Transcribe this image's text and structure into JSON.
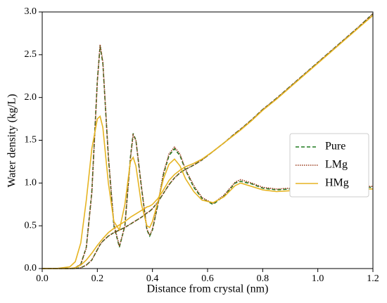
{
  "chart_data": {
    "type": "line",
    "xlabel": "Distance from crystal (nm)",
    "ylabel": "Water density (kg/L)",
    "x": [
      0,
      0.05,
      0.1,
      0.12,
      0.14,
      0.16,
      0.18,
      0.2,
      0.21,
      0.22,
      0.24,
      0.26,
      0.28,
      0.3,
      0.32,
      0.33,
      0.34,
      0.36,
      0.38,
      0.39,
      0.4,
      0.42,
      0.44,
      0.46,
      0.48,
      0.5,
      0.52,
      0.55,
      0.58,
      0.62,
      0.66,
      0.7,
      0.72,
      0.76,
      0.8,
      0.85,
      0.9,
      0.95,
      1.0,
      1.05,
      1.1,
      1.15,
      1.2
    ],
    "series": [
      {
        "name": "Pure",
        "color": "#1f7a1f",
        "dash": "5,3",
        "values": [
          0,
          0,
          0,
          0.01,
          0.05,
          0.25,
          0.9,
          2.2,
          2.6,
          2.4,
          1.3,
          0.5,
          0.25,
          0.5,
          1.3,
          1.58,
          1.5,
          0.95,
          0.45,
          0.38,
          0.45,
          0.75,
          1.1,
          1.32,
          1.4,
          1.32,
          1.15,
          0.95,
          0.82,
          0.75,
          0.85,
          1.0,
          1.02,
          0.99,
          0.94,
          0.92,
          0.93,
          0.94,
          0.95,
          0.95,
          0.95,
          0.95,
          0.95
        ],
        "cumulative": [
          0,
          0,
          0,
          0,
          0.01,
          0.04,
          0.1,
          0.22,
          0.28,
          0.32,
          0.38,
          0.42,
          0.45,
          0.48,
          0.52,
          0.54,
          0.56,
          0.6,
          0.65,
          0.67,
          0.7,
          0.78,
          0.88,
          0.98,
          1.06,
          1.12,
          1.16,
          1.21,
          1.27,
          1.37,
          1.47,
          1.58,
          1.63,
          1.74,
          1.86,
          1.99,
          2.13,
          2.27,
          2.41,
          2.55,
          2.69,
          2.83,
          2.98
        ]
      },
      {
        "name": "LMg",
        "color": "#9a3b1c",
        "dash": "1.5,1.5",
        "values": [
          0,
          0,
          0,
          0.01,
          0.05,
          0.24,
          0.88,
          2.18,
          2.62,
          2.42,
          1.32,
          0.52,
          0.26,
          0.5,
          1.28,
          1.56,
          1.5,
          0.96,
          0.46,
          0.39,
          0.46,
          0.76,
          1.12,
          1.34,
          1.42,
          1.34,
          1.16,
          0.97,
          0.83,
          0.76,
          0.86,
          1.01,
          1.04,
          1.0,
          0.95,
          0.93,
          0.94,
          0.95,
          0.96,
          0.96,
          0.96,
          0.96,
          0.96
        ],
        "cumulative": [
          0,
          0,
          0,
          0,
          0.01,
          0.04,
          0.1,
          0.22,
          0.28,
          0.32,
          0.38,
          0.42,
          0.45,
          0.48,
          0.52,
          0.54,
          0.56,
          0.6,
          0.65,
          0.67,
          0.7,
          0.78,
          0.88,
          0.98,
          1.06,
          1.12,
          1.16,
          1.21,
          1.27,
          1.37,
          1.47,
          1.58,
          1.63,
          1.74,
          1.86,
          1.99,
          2.13,
          2.27,
          2.41,
          2.55,
          2.69,
          2.83,
          2.98
        ]
      },
      {
        "name": "HMg",
        "color": "#e6b422",
        "dash": "",
        "values": [
          0,
          0,
          0.02,
          0.08,
          0.3,
          0.8,
          1.4,
          1.75,
          1.78,
          1.65,
          1.0,
          0.55,
          0.45,
          0.75,
          1.25,
          1.3,
          1.2,
          0.75,
          0.5,
          0.48,
          0.55,
          0.78,
          1.05,
          1.22,
          1.28,
          1.2,
          1.05,
          0.9,
          0.8,
          0.77,
          0.84,
          0.97,
          1.0,
          0.96,
          0.92,
          0.9,
          0.91,
          0.92,
          0.93,
          0.93,
          0.93,
          0.93,
          0.93
        ],
        "cumulative": [
          0,
          0,
          0,
          0.01,
          0.04,
          0.1,
          0.18,
          0.27,
          0.31,
          0.35,
          0.42,
          0.47,
          0.51,
          0.55,
          0.6,
          0.62,
          0.64,
          0.68,
          0.72,
          0.73,
          0.75,
          0.82,
          0.92,
          1.03,
          1.1,
          1.15,
          1.19,
          1.23,
          1.28,
          1.37,
          1.47,
          1.57,
          1.62,
          1.73,
          1.85,
          1.98,
          2.12,
          2.26,
          2.4,
          2.54,
          2.68,
          2.82,
          2.96
        ]
      }
    ],
    "xlim": [
      0,
      1.2
    ],
    "xticks": [
      {
        "value": 0,
        "label": "0.0"
      },
      0.2,
      0.4,
      0.6,
      0.8,
      {
        "value": 1,
        "label": "1.0"
      },
      1.2
    ],
    "ylim": [
      0,
      3
    ],
    "yticks": [
      {
        "value": 0,
        "label": "0.0"
      },
      0.5,
      {
        "value": 1,
        "label": "1.0"
      },
      1.5,
      {
        "value": 2,
        "label": "2.0"
      },
      2.5,
      {
        "value": 3,
        "label": "3.0"
      }
    ],
    "legend": "right"
  }
}
